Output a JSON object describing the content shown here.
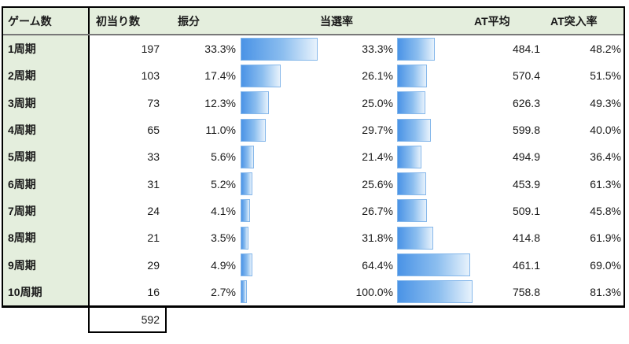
{
  "table": {
    "headers": {
      "game": "ゲーム数",
      "first_hits": "初当り数",
      "share": "振分",
      "win_rate": "当選率",
      "at_avg": "AT平均",
      "at_entry": "AT突入率"
    },
    "rows": [
      {
        "label": "1周期",
        "hits": "197",
        "share": "33.3%",
        "share_bar_pct": 98.2,
        "win": "33.3%",
        "win_bar_pct": 49.9,
        "at_avg": "484.1",
        "at_entry": "48.2%"
      },
      {
        "label": "2周期",
        "hits": "103",
        "share": "17.4%",
        "share_bar_pct": 51.3,
        "win": "26.1%",
        "win_bar_pct": 39.1,
        "at_avg": "570.4",
        "at_entry": "51.5%"
      },
      {
        "label": "3周期",
        "hits": "73",
        "share": "12.3%",
        "share_bar_pct": 36.3,
        "win": "25.0%",
        "win_bar_pct": 37.5,
        "at_avg": "626.3",
        "at_entry": "49.3%"
      },
      {
        "label": "4周期",
        "hits": "65",
        "share": "11.0%",
        "share_bar_pct": 32.4,
        "win": "29.7%",
        "win_bar_pct": 44.5,
        "at_avg": "599.8",
        "at_entry": "40.0%"
      },
      {
        "label": "5周期",
        "hits": "33",
        "share": "5.6%",
        "share_bar_pct": 16.5,
        "win": "21.4%",
        "win_bar_pct": 32.1,
        "at_avg": "494.9",
        "at_entry": "36.4%"
      },
      {
        "label": "6周期",
        "hits": "31",
        "share": "5.2%",
        "share_bar_pct": 15.3,
        "win": "25.6%",
        "win_bar_pct": 38.4,
        "at_avg": "453.9",
        "at_entry": "61.3%"
      },
      {
        "label": "7周期",
        "hits": "24",
        "share": "4.1%",
        "share_bar_pct": 12.1,
        "win": "26.7%",
        "win_bar_pct": 40.0,
        "at_avg": "509.1",
        "at_entry": "45.8%"
      },
      {
        "label": "8周期",
        "hits": "21",
        "share": "3.5%",
        "share_bar_pct": 10.3,
        "win": "31.8%",
        "win_bar_pct": 47.7,
        "at_avg": "414.8",
        "at_entry": "61.9%"
      },
      {
        "label": "9周期",
        "hits": "29",
        "share": "4.9%",
        "share_bar_pct": 14.5,
        "win": "64.4%",
        "win_bar_pct": 96.6,
        "at_avg": "461.1",
        "at_entry": "69.0%"
      },
      {
        "label": "10周期",
        "hits": "16",
        "share": "2.7%",
        "share_bar_pct": 8.0,
        "win": "100.0%",
        "win_bar_pct": 100,
        "at_avg": "758.8",
        "at_entry": "81.3%"
      }
    ],
    "total_hits": "592"
  },
  "colors": {
    "header_green": "#e4eedd",
    "header_underline": "#787878",
    "table_border": "#000000",
    "bar_border": "#85b7ea",
    "bar_fill_start": "#4a93e6",
    "bar_fill_end": "#e7f2fc"
  },
  "chart_data": {
    "type": "table",
    "columns": [
      "ゲーム数",
      "初当り数",
      "振分",
      "当選率",
      "AT平均",
      "AT突入率"
    ],
    "rows": [
      [
        "1周期",
        197,
        33.3,
        33.3,
        484.1,
        48.2
      ],
      [
        "2周期",
        103,
        17.4,
        26.1,
        570.4,
        51.5
      ],
      [
        "3周期",
        73,
        12.3,
        25.0,
        626.3,
        49.3
      ],
      [
        "4周期",
        65,
        11.0,
        29.7,
        599.8,
        40.0
      ],
      [
        "5周期",
        33,
        5.6,
        21.4,
        494.9,
        36.4
      ],
      [
        "6周期",
        31,
        5.2,
        25.6,
        453.9,
        61.3
      ],
      [
        "7周期",
        24,
        4.1,
        26.7,
        509.1,
        45.8
      ],
      [
        "8周期",
        21,
        3.5,
        31.8,
        414.8,
        61.9
      ],
      [
        "9周期",
        29,
        4.9,
        64.4,
        461.1,
        69.0
      ],
      [
        "10周期",
        16,
        2.7,
        100.0,
        758.8,
        81.3
      ]
    ],
    "percent_columns": [
      "振分",
      "当選率",
      "AT突入率"
    ],
    "total_first_hits": 592,
    "data_bars": [
      {
        "column": "振分",
        "type": "bar",
        "values": [
          33.3,
          17.4,
          12.3,
          11.0,
          5.6,
          5.2,
          4.1,
          3.5,
          4.9,
          2.7
        ],
        "scale_max": 33.9
      },
      {
        "column": "当選率",
        "type": "bar",
        "values": [
          33.3,
          26.1,
          25.0,
          29.7,
          21.4,
          25.6,
          26.7,
          31.8,
          64.4,
          100.0
        ],
        "scale_max": 66.7
      }
    ],
    "legend_position": "none",
    "grid": false
  }
}
